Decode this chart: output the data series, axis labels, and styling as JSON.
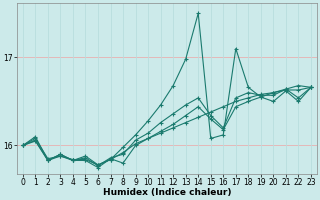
{
  "xlabel": "Humidex (Indice chaleur)",
  "bg_color": "#cceaea",
  "line_color": "#1a7a6e",
  "grid_color_h": "#e8b0b0",
  "grid_color_v": "#b8dede",
  "xlim": [
    -0.5,
    23.5
  ],
  "ylim": [
    15.68,
    17.62
  ],
  "yticks": [
    16,
    17
  ],
  "xticks": [
    0,
    1,
    2,
    3,
    4,
    5,
    6,
    7,
    8,
    9,
    10,
    11,
    12,
    13,
    14,
    15,
    16,
    17,
    18,
    19,
    20,
    21,
    22,
    23
  ],
  "lines": [
    [
      16.0,
      16.08,
      15.85,
      15.88,
      15.84,
      15.84,
      15.78,
      15.84,
      15.92,
      16.02,
      16.08,
      16.14,
      16.2,
      16.26,
      16.32,
      16.38,
      16.44,
      16.5,
      16.54,
      16.58,
      16.6,
      16.63,
      16.63,
      16.66
    ],
    [
      16.0,
      16.05,
      15.83,
      15.9,
      15.83,
      15.83,
      15.75,
      15.85,
      15.8,
      16.0,
      16.08,
      16.16,
      16.24,
      16.34,
      16.44,
      16.3,
      16.18,
      16.44,
      16.5,
      16.55,
      16.5,
      16.62,
      16.5,
      16.66
    ],
    [
      16.0,
      16.06,
      15.83,
      15.9,
      15.83,
      15.86,
      15.77,
      15.86,
      15.9,
      16.06,
      16.14,
      16.26,
      16.36,
      16.46,
      16.54,
      16.34,
      16.2,
      16.54,
      16.6,
      16.57,
      16.57,
      16.64,
      16.54,
      16.66
    ],
    [
      16.0,
      16.1,
      15.83,
      15.88,
      15.83,
      15.88,
      15.78,
      15.84,
      15.98,
      16.12,
      16.28,
      16.46,
      16.68,
      16.98,
      17.5,
      16.08,
      16.12,
      17.1,
      16.66,
      16.55,
      16.6,
      16.64,
      16.68,
      16.66
    ]
  ],
  "marker": "+",
  "markersize": 3,
  "lw": 0.8,
  "xlabel_fontsize": 6.5,
  "tick_fontsize": 5.5
}
